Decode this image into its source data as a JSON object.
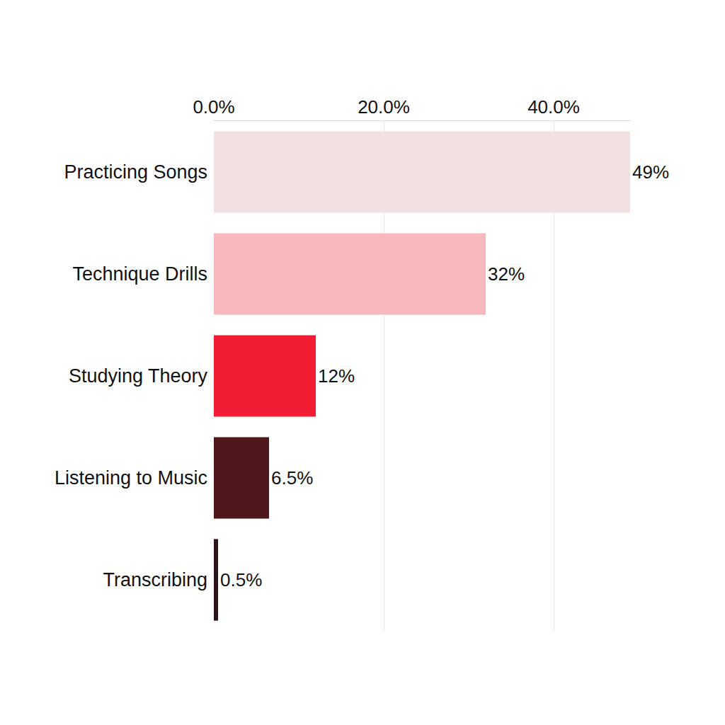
{
  "chart_data": {
    "type": "bar",
    "orientation": "horizontal",
    "categories": [
      "Practicing Songs",
      "Technique Drills",
      "Studying Theory",
      "Listening to Music",
      "Transcribing"
    ],
    "values": [
      49,
      32,
      12,
      6.5,
      0.5
    ],
    "value_labels": [
      "49%",
      "32%",
      "12%",
      "6.5%",
      "0.5%"
    ],
    "colors": [
      "#f2e1e1",
      "#f7b9be",
      "#f21c33",
      "#4f171c",
      "#2b1518"
    ],
    "xlim": [
      0,
      49
    ],
    "xticks": [
      {
        "value": 0,
        "label": "0.0%"
      },
      {
        "value": 20,
        "label": "20.0%"
      },
      {
        "value": 40,
        "label": "40.0%"
      }
    ],
    "grid": true,
    "data_labels": true
  }
}
